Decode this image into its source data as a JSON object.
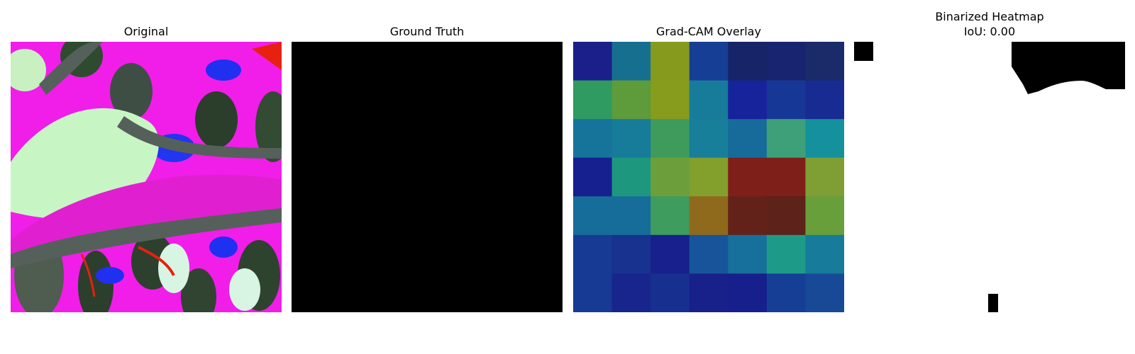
{
  "panels": {
    "original": {
      "title": "Original"
    },
    "ground_truth": {
      "title": "Ground Truth"
    },
    "overlay": {
      "title": "Grad-CAM Overlay"
    },
    "binarized": {
      "title": "Binarized Heatmap",
      "subtitle": "IoU: 0.00"
    }
  },
  "gradcam_grid": {
    "rows": 7,
    "cols": 7,
    "colors": [
      [
        "#1a1f8a",
        "#166f8e",
        "#869b1e",
        "#173e95",
        "#172568",
        "#182470",
        "#1b2a68"
      ],
      [
        "#2f9b60",
        "#5e9b3a",
        "#879b1c",
        "#167c9a",
        "#17239a",
        "#173797",
        "#172b92"
      ],
      [
        "#16739a",
        "#167c9a",
        "#3f9b5c",
        "#177f9a",
        "#166b9a",
        "#3ea078",
        "#14919c"
      ],
      [
        "#16208f",
        "#1d987e",
        "#6c9f3c",
        "#839f2c",
        "#7e1f1a",
        "#7f1f1a",
        "#7f9f34"
      ],
      [
        "#166d9a",
        "#166d9a",
        "#3e9c5e",
        "#8f6a1c",
        "#632219",
        "#5d2219",
        "#689f3a"
      ],
      [
        "#173a95",
        "#17328f",
        "#17208c",
        "#18549a",
        "#16709b",
        "#1d9b88",
        "#167c9a"
      ],
      [
        "#173a95",
        "#17258c",
        "#17308f",
        "#18208a",
        "#171f8c",
        "#173e95",
        "#174996"
      ]
    ]
  }
}
